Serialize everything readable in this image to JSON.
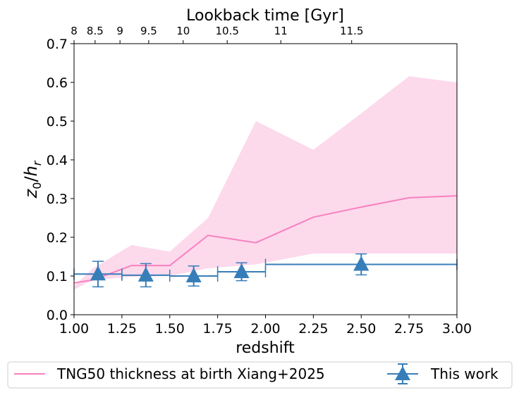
{
  "chart_data": {
    "type": "line",
    "title": "",
    "xlabel": "redshift",
    "ylabel": "z0/hr",
    "ylabel_parts": {
      "main": "z",
      "sub0": "0",
      "slash": "/",
      "h": "h",
      "subr": "r"
    },
    "xlim": [
      1.0,
      3.0
    ],
    "ylim": [
      0.0,
      0.7
    ],
    "grid": false,
    "x_ticks": [
      1.0,
      1.25,
      1.5,
      1.75,
      2.0,
      2.25,
      2.5,
      2.75,
      3.0
    ],
    "x_tick_labels": [
      "1.00",
      "1.25",
      "1.50",
      "1.75",
      "2.00",
      "2.25",
      "2.50",
      "2.75",
      "3.00"
    ],
    "y_ticks": [
      0.0,
      0.1,
      0.2,
      0.3,
      0.4,
      0.5,
      0.6,
      0.7
    ],
    "y_tick_labels": [
      "0.0",
      "0.1",
      "0.2",
      "0.3",
      "0.4",
      "0.5",
      "0.6",
      "0.7"
    ],
    "top_axis": {
      "label": "Lookback time [Gyr]",
      "ticks": [
        {
          "label": "8",
          "z": 1.0
        },
        {
          "label": "8.5",
          "z": 1.11
        },
        {
          "label": "9",
          "z": 1.24
        },
        {
          "label": "9.5",
          "z": 1.39
        },
        {
          "label": "10",
          "z": 1.57
        },
        {
          "label": "10.5",
          "z": 1.8
        },
        {
          "label": "11",
          "z": 2.08
        },
        {
          "label": "11.5",
          "z": 2.45
        }
      ]
    },
    "series": [
      {
        "name": "TNG50 thickness at birth Xiang+2025",
        "color": "#f781bf",
        "band_color": "#f781bf",
        "x": [
          1.0,
          1.1,
          1.3,
          1.5,
          1.7,
          1.95,
          2.25,
          2.5,
          2.75,
          3.0
        ],
        "values": [
          0.082,
          0.09,
          0.127,
          0.127,
          0.205,
          0.186,
          0.252,
          0.278,
          0.302,
          0.307
        ],
        "band_upper": [
          0.074,
          0.12,
          0.18,
          0.163,
          0.25,
          0.5,
          0.426,
          0.52,
          0.616,
          0.6
        ],
        "band_lower": [
          0.065,
          0.09,
          0.098,
          0.1,
          0.12,
          0.13,
          0.158,
          0.158,
          0.158,
          0.158
        ]
      },
      {
        "name": "This work",
        "color": "#377eb8",
        "marker": "triangle",
        "x": [
          1.125,
          1.375,
          1.625,
          1.875,
          2.5
        ],
        "values": [
          0.105,
          0.102,
          0.1,
          0.111,
          0.13
        ],
        "x_err": [
          0.125,
          0.125,
          0.125,
          0.125,
          0.5
        ],
        "y_err": [
          0.033,
          0.03,
          0.026,
          0.023,
          0.027
        ]
      }
    ],
    "legend": {
      "placement": "bottom-outside",
      "entries": [
        "TNG50 thickness at birth Xiang+2025",
        "This work"
      ]
    }
  }
}
